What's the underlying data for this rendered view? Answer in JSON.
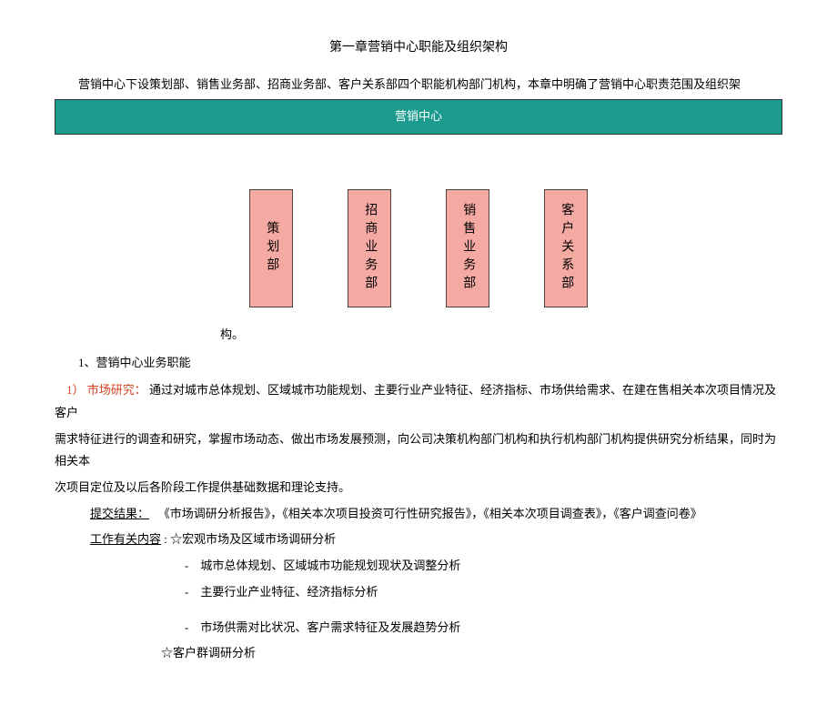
{
  "title": "第一章营销中心职能及组织架构",
  "intro": "营销中心下设策划部、销售业务部、招商业务部、客户关系部四个职能机构部门机构，本章中明确了营销中心职责范围及组织架",
  "org": {
    "root": "营销中心",
    "children": [
      "策划部",
      "招商业务部",
      "销售业务部",
      "客户关系部"
    ],
    "root_bg": "#1a9b8e",
    "child_bg": "#f5a9a3"
  },
  "gouend": "构。",
  "section1": "1、营销中心业务职能",
  "item1_num": "1）",
  "item1_label": "市场研究：",
  "item1_body_a": "通过对城市总体规划、区域城市功能规划、主要行业产业特征、经济指标、市场供给需求、在建在售相关本次项目情况及客户",
  "item1_body_b": "需求特征进行的调查和研究，掌握市场动态、做出市场发展预测，向公司决策机构部门机构和执行机构部门机构提供研究分析结果，同时为相关本",
  "item1_body_c": "次项目定位及以后各阶段工作提供基础数据和理论支持。",
  "deliver_label": "提交结果：",
  "deliver_body": "　《市场调研分析报告》，《相关本次项目投资可行性研究报告》，《相关本次项目调查表》，《客户调查问卷》",
  "work_label": "工作有关内容",
  "work_suffix": ": ☆宏观市场及区域市场调研分析",
  "bullets": [
    "-　城市总体规划、区域城市功能规划现状及调整分析",
    "-　主要行业产业特征、经济指标分析",
    "-　市场供需对比状况、客户需求特征及发展趋势分析"
  ],
  "sub": "☆客户群调研分析"
}
